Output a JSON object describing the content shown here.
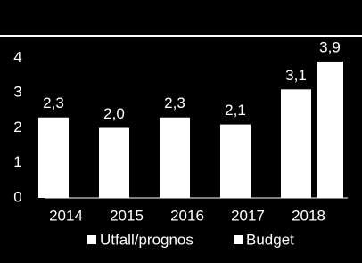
{
  "chart_data": {
    "type": "bar",
    "categories": [
      "2014",
      "2015",
      "2016",
      "2017",
      "2018"
    ],
    "series": [
      {
        "name": "Utfall/prognos",
        "color": "#ffffff",
        "values": [
          2.3,
          2.0,
          2.3,
          2.1,
          3.1
        ],
        "value_labels": [
          "2,3",
          "2,0",
          "2,3",
          "2,1",
          "3,1"
        ]
      },
      {
        "name": "Budget",
        "color": "#ffffff",
        "values": [
          null,
          null,
          null,
          null,
          3.9
        ],
        "value_labels": [
          null,
          null,
          null,
          null,
          "3,9"
        ]
      }
    ],
    "ylim": [
      0,
      4
    ],
    "yticks": [
      0,
      1,
      2,
      3,
      4
    ],
    "grid": false,
    "legend": "bottom"
  }
}
